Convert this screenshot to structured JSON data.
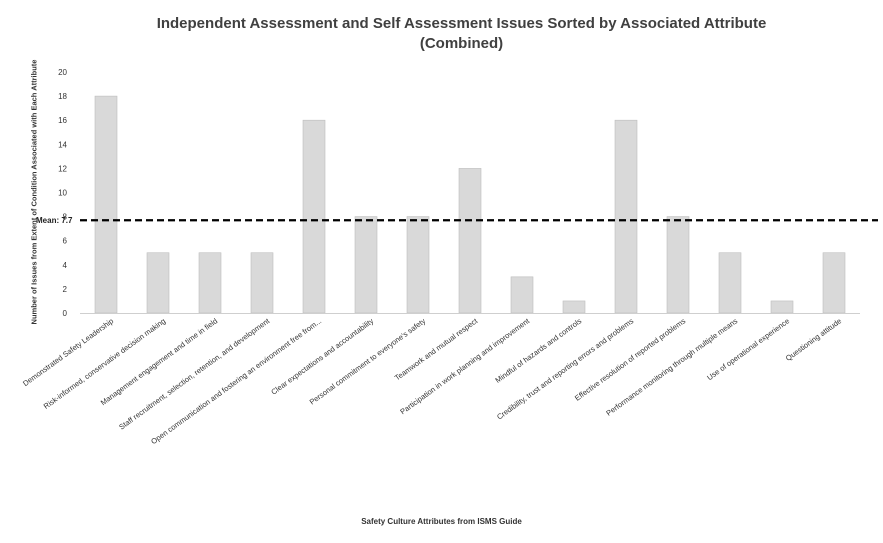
{
  "chart_data": {
    "type": "bar",
    "title": "Independent Assessment and Self Assessment Issues Sorted by Associated Attribute",
    "subtitle": "(Combined)",
    "xlabel": "Safety Culture Attributes from ISMS Guide",
    "ylabel": "Number of Issues from Extent of Condition Associated with Each Attribute",
    "categories": [
      "Demonstrated Safety Leadership",
      "Risk-informed, conservative decision making",
      "Management engagement and time in field",
      "Staff recruitment, selection, retention, and development",
      "Open communication and fostering an environment free from...",
      "Clear expectations and accountability",
      "Personal commitment to everyone's safety",
      "Teamwork and mutual respect",
      "Participation in work planning and improvement",
      "Mindful of hazards and controls",
      "Credibility, trust and reporting errors and problems",
      "Effective resolution of reported problems",
      "Performance monitoring through multiple means",
      "Use of operational experience",
      "Questioning attitude"
    ],
    "values": [
      18,
      5,
      5,
      5,
      16,
      8,
      8,
      12,
      3,
      1,
      16,
      8,
      5,
      1,
      5
    ],
    "ylim": [
      0,
      20
    ],
    "yticks": [
      "0",
      "2",
      "4",
      "6",
      "8",
      "10",
      "12",
      "14",
      "16",
      "18",
      "20"
    ],
    "mean": 7.7,
    "mean_label": "Mean: 7.7",
    "grid": false,
    "bar_color": "#d9d9d9",
    "mean_line_color": "#000000"
  }
}
